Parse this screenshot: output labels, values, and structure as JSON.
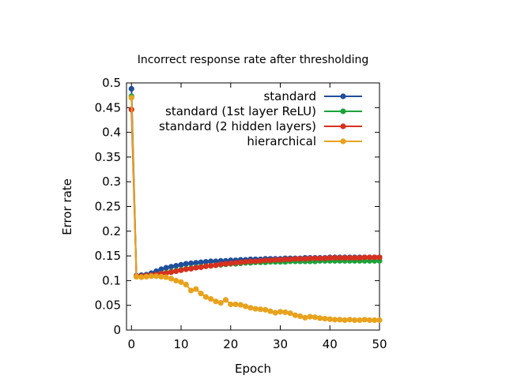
{
  "chart_data": {
    "type": "line",
    "title": "Incorrect response rate after thresholding",
    "xlabel": "Epoch",
    "ylabel": "Error rate",
    "xlim": [
      -1,
      50
    ],
    "ylim": [
      0,
      0.5
    ],
    "x_ticks": [
      0,
      10,
      20,
      30,
      40,
      50
    ],
    "y_ticks": [
      0,
      0.05,
      0.1,
      0.15,
      0.2,
      0.25,
      0.3,
      0.35,
      0.4,
      0.45,
      0.5
    ],
    "x_tick_labels": [
      "0",
      "10",
      "20",
      "30",
      "40",
      "50"
    ],
    "y_tick_labels": [
      "0",
      "0.05",
      "0.1",
      "0.15",
      "0.2",
      "0.25",
      "0.3",
      "0.35",
      "0.4",
      "0.45",
      "0.5"
    ],
    "grid": false,
    "legend_position": "top-right",
    "x": [
      0,
      1,
      2,
      3,
      4,
      5,
      6,
      7,
      8,
      9,
      10,
      11,
      12,
      13,
      14,
      15,
      16,
      17,
      18,
      19,
      20,
      21,
      22,
      23,
      24,
      25,
      26,
      27,
      28,
      29,
      30,
      31,
      32,
      33,
      34,
      35,
      36,
      37,
      38,
      39,
      40,
      41,
      42,
      43,
      44,
      45,
      46,
      47,
      48,
      49,
      50
    ],
    "series": [
      {
        "name": "standard",
        "color": "#1f4e9a",
        "values": [
          0.488,
          0.11,
          0.111,
          0.112,
          0.115,
          0.119,
          0.123,
          0.126,
          0.128,
          0.13,
          0.132,
          0.134,
          0.135,
          0.136,
          0.137,
          0.138,
          0.139,
          0.139,
          0.14,
          0.14,
          0.141,
          0.141,
          0.142,
          0.142,
          0.143,
          0.143,
          0.143,
          0.144,
          0.144,
          0.144,
          0.144,
          0.145,
          0.145,
          0.145,
          0.145,
          0.146,
          0.146,
          0.146,
          0.146,
          0.146,
          0.147,
          0.147,
          0.147,
          0.147,
          0.147,
          0.147,
          0.147,
          0.147,
          0.147,
          0.147,
          0.147
        ]
      },
      {
        "name": "standard (1st layer ReLU)",
        "color": "#1aa33a",
        "values": [
          0.473,
          0.108,
          0.109,
          0.11,
          0.111,
          0.112,
          0.114,
          0.116,
          0.118,
          0.12,
          0.122,
          0.124,
          0.125,
          0.127,
          0.128,
          0.129,
          0.13,
          0.131,
          0.132,
          0.133,
          0.134,
          0.134,
          0.135,
          0.136,
          0.136,
          0.137,
          0.137,
          0.137,
          0.138,
          0.138,
          0.138,
          0.138,
          0.139,
          0.139,
          0.139,
          0.139,
          0.139,
          0.139,
          0.14,
          0.14,
          0.14,
          0.14,
          0.14,
          0.14,
          0.14,
          0.14,
          0.14,
          0.14,
          0.14,
          0.14,
          0.14
        ]
      },
      {
        "name": "standard (2 hidden layers)",
        "color": "#d7301f",
        "values": [
          0.446,
          0.109,
          0.109,
          0.11,
          0.111,
          0.112,
          0.114,
          0.115,
          0.117,
          0.119,
          0.121,
          0.123,
          0.124,
          0.126,
          0.127,
          0.129,
          0.13,
          0.131,
          0.133,
          0.134,
          0.135,
          0.136,
          0.137,
          0.138,
          0.139,
          0.139,
          0.14,
          0.141,
          0.141,
          0.142,
          0.142,
          0.143,
          0.143,
          0.144,
          0.144,
          0.144,
          0.145,
          0.145,
          0.145,
          0.145,
          0.146,
          0.146,
          0.146,
          0.146,
          0.146,
          0.146,
          0.146,
          0.147,
          0.147,
          0.147,
          0.147
        ]
      },
      {
        "name": "hierarchical",
        "color": "#e8a21c",
        "values": [
          0.47,
          0.108,
          0.107,
          0.108,
          0.109,
          0.109,
          0.108,
          0.107,
          0.104,
          0.1,
          0.097,
          0.092,
          0.08,
          0.083,
          0.074,
          0.067,
          0.063,
          0.058,
          0.055,
          0.061,
          0.052,
          0.052,
          0.051,
          0.048,
          0.045,
          0.043,
          0.042,
          0.041,
          0.038,
          0.035,
          0.037,
          0.036,
          0.034,
          0.03,
          0.028,
          0.025,
          0.027,
          0.026,
          0.024,
          0.023,
          0.022,
          0.021,
          0.021,
          0.02,
          0.021,
          0.02,
          0.02,
          0.021,
          0.02,
          0.02,
          0.02
        ]
      }
    ]
  }
}
